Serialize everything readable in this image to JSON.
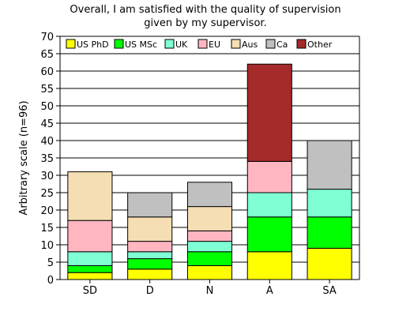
{
  "chart_data": {
    "type": "bar",
    "stacked": true,
    "title_lines": [
      "Overall, I am satisfied with the quality of supervision",
      "given by my supervisor."
    ],
    "ylabel": "Arbitrary scale (n=96)",
    "xlabel": "",
    "ylim": [
      0,
      70
    ],
    "ytick_step": 5,
    "grid": true,
    "legend_position": "top-inside",
    "categories": [
      "SD",
      "D",
      "N",
      "A",
      "SA"
    ],
    "series": [
      {
        "name": "US PhD",
        "color": "#ffff00",
        "values": [
          2,
          3,
          4,
          8,
          9
        ]
      },
      {
        "name": "US MSc",
        "color": "#00ff00",
        "values": [
          2,
          3,
          4,
          10,
          9
        ]
      },
      {
        "name": "UK",
        "color": "#7fffd4",
        "values": [
          4,
          2,
          3,
          7,
          8
        ]
      },
      {
        "name": "EU",
        "color": "#ffb6c1",
        "values": [
          9,
          3,
          3,
          9,
          0
        ]
      },
      {
        "name": "Aus",
        "color": "#f5deb3",
        "values": [
          14,
          7,
          7,
          0,
          0
        ]
      },
      {
        "name": "Ca",
        "color": "#c0c0c0",
        "values": [
          0,
          7,
          7,
          0,
          14
        ]
      },
      {
        "name": "Other",
        "color": "#a52a2a",
        "values": [
          0,
          0,
          0,
          28,
          0
        ]
      }
    ]
  }
}
